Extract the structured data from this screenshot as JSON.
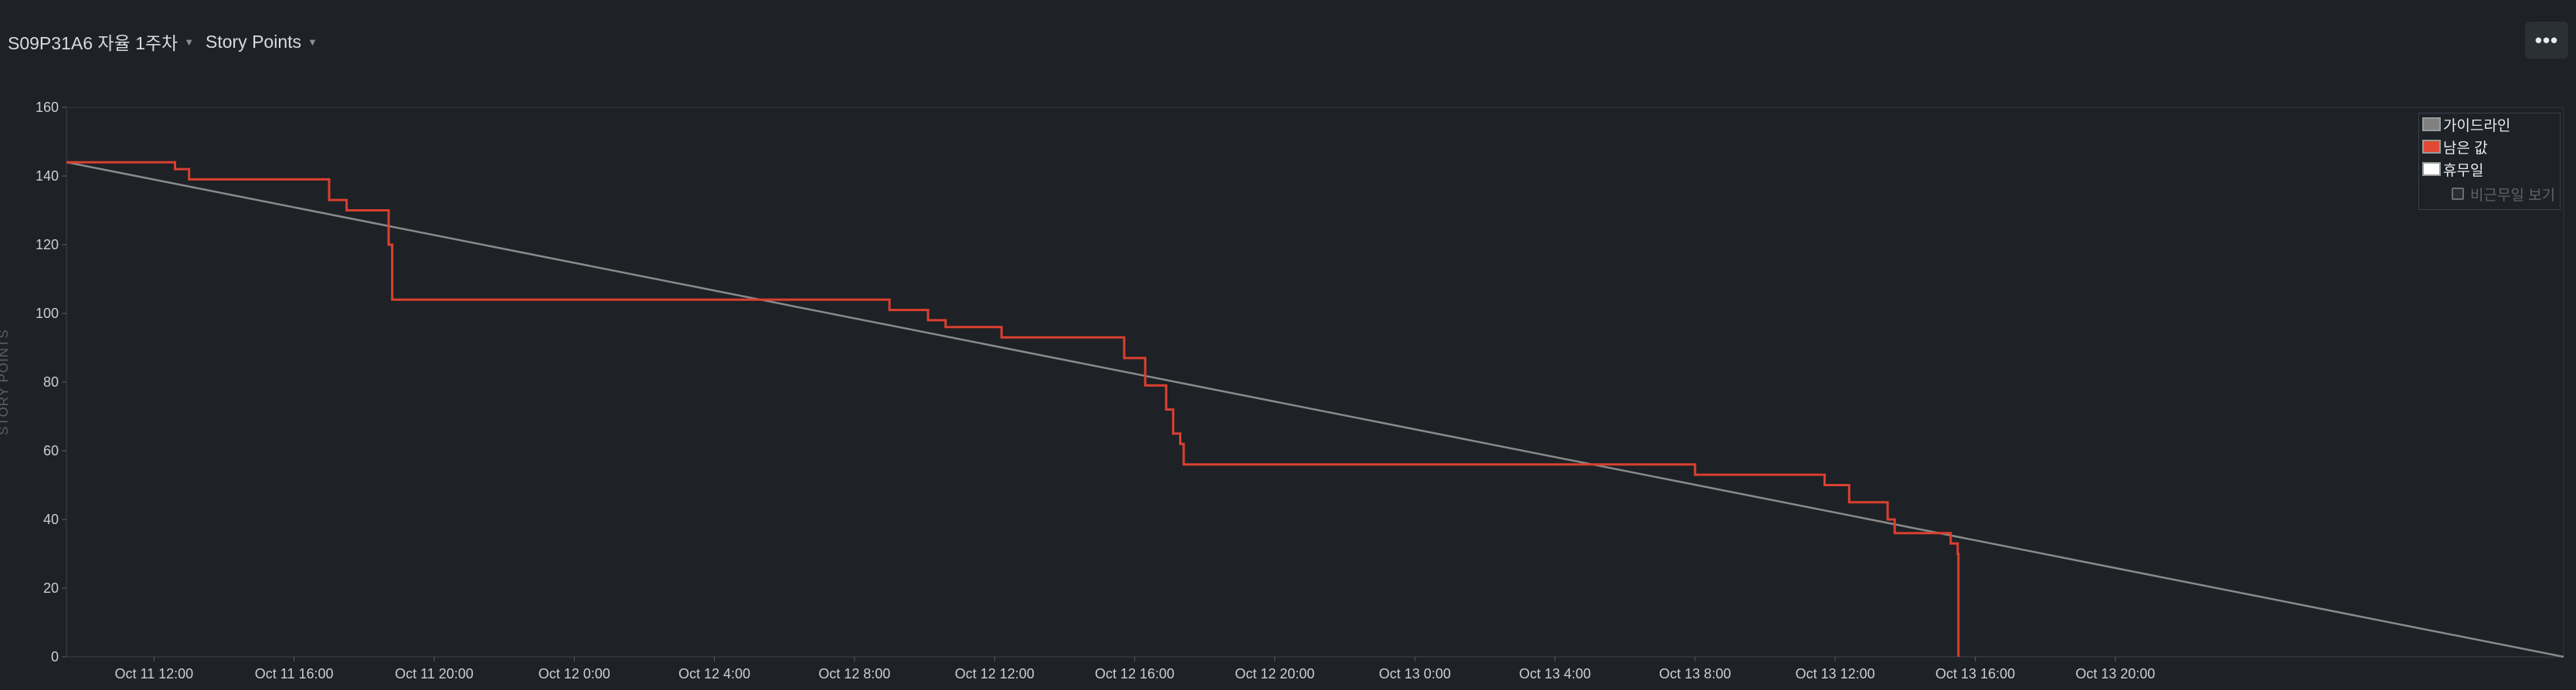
{
  "header": {
    "sprint_label": "S09P31A6 자율 1주차",
    "metric_label": "Story Points",
    "more_label": "•••"
  },
  "legend": {
    "items": [
      {
        "label": "가이드라인",
        "color": "#808080"
      },
      {
        "label": "남은 값",
        "color": "#e04a35"
      },
      {
        "label": "휴무일",
        "color": "#ffffff"
      }
    ],
    "checkbox_label": "비근무일 보기",
    "checkbox_checked": false
  },
  "chart_data": {
    "type": "line",
    "ylabel": "STORY POINTS",
    "ylim": [
      0,
      160
    ],
    "yticks": [
      "0",
      "20",
      "40",
      "60",
      "80",
      "100",
      "120",
      "140",
      "160"
    ],
    "xlim_hours": [
      9.5,
      80.8
    ],
    "xticks": [
      {
        "hour": 12,
        "label": "Oct 11 12:00"
      },
      {
        "hour": 16,
        "label": "Oct 11 16:00"
      },
      {
        "hour": 20,
        "label": "Oct 11 20:00"
      },
      {
        "hour": 24,
        "label": "Oct 12 0:00"
      },
      {
        "hour": 28,
        "label": "Oct 12 4:00"
      },
      {
        "hour": 32,
        "label": "Oct 12 8:00"
      },
      {
        "hour": 36,
        "label": "Oct 12 12:00"
      },
      {
        "hour": 40,
        "label": "Oct 12 16:00"
      },
      {
        "hour": 44,
        "label": "Oct 12 20:00"
      },
      {
        "hour": 48,
        "label": "Oct 13 0:00"
      },
      {
        "hour": 52,
        "label": "Oct 13 4:00"
      },
      {
        "hour": 56,
        "label": "Oct 13 8:00"
      },
      {
        "hour": 60,
        "label": "Oct 13 12:00"
      },
      {
        "hour": 64,
        "label": "Oct 13 16:00"
      },
      {
        "hour": 68,
        "label": "Oct 13 20:00"
      }
    ],
    "series": [
      {
        "name": "가이드라인",
        "color": "#8a8a8a",
        "kind": "line",
        "points": [
          [
            9.5,
            144
          ],
          [
            80.8,
            0
          ]
        ]
      },
      {
        "name": "남은 값",
        "color": "#d9402f",
        "kind": "step",
        "points": [
          [
            9.5,
            144
          ],
          [
            12.0,
            144
          ],
          [
            12.6,
            142
          ],
          [
            13.0,
            139
          ],
          [
            16.5,
            139
          ],
          [
            17.0,
            133
          ],
          [
            17.5,
            130
          ],
          [
            18.6,
            130
          ],
          [
            18.7,
            120
          ],
          [
            18.8,
            104
          ],
          [
            32.9,
            104
          ],
          [
            33.0,
            101
          ],
          [
            34.0,
            101
          ],
          [
            34.1,
            98
          ],
          [
            34.5,
            98
          ],
          [
            34.6,
            96
          ],
          [
            36.1,
            96
          ],
          [
            36.2,
            93
          ],
          [
            39.6,
            93
          ],
          [
            39.7,
            87
          ],
          [
            40.2,
            87
          ],
          [
            40.3,
            79
          ],
          [
            40.8,
            79
          ],
          [
            40.9,
            72
          ],
          [
            41.1,
            65
          ],
          [
            41.3,
            62
          ],
          [
            41.4,
            56
          ],
          [
            55.9,
            56
          ],
          [
            56.0,
            53
          ],
          [
            59.6,
            53
          ],
          [
            59.7,
            50
          ],
          [
            60.2,
            50
          ],
          [
            60.4,
            45
          ],
          [
            61.4,
            45
          ],
          [
            61.5,
            40
          ],
          [
            61.7,
            36
          ],
          [
            63.0,
            36
          ],
          [
            63.3,
            33
          ],
          [
            63.5,
            30
          ],
          [
            63.52,
            0
          ]
        ]
      }
    ]
  }
}
